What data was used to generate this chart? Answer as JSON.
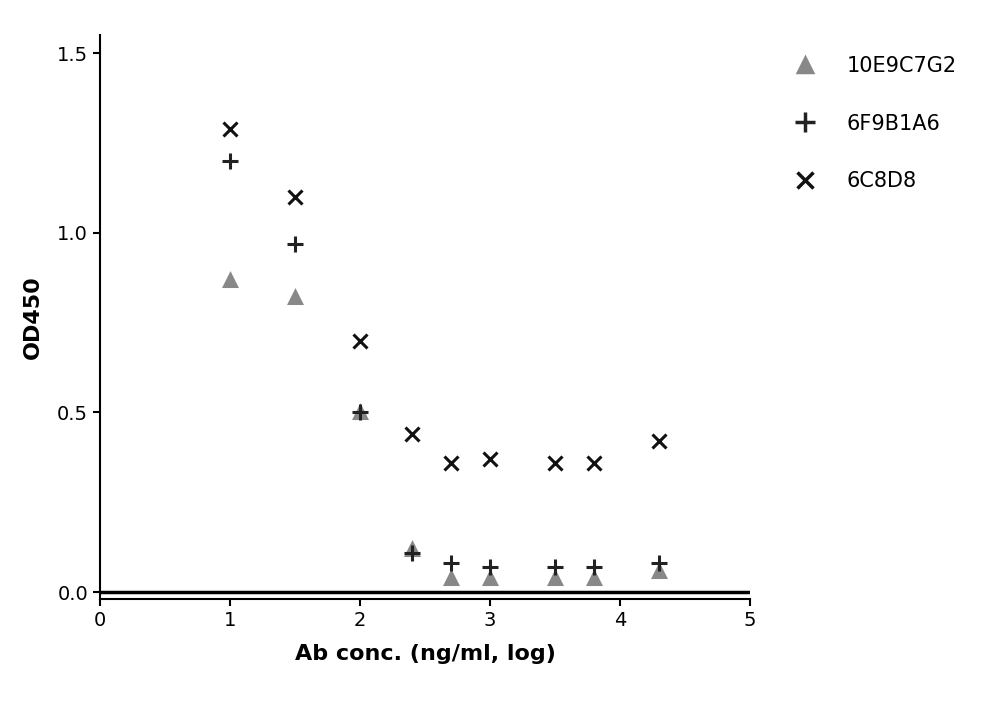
{
  "title": "",
  "xlabel": "Ab conc. (ng/ml, log)",
  "ylabel": "OD450",
  "xlim": [
    0,
    5
  ],
  "ylim": [
    -0.02,
    1.55
  ],
  "xticks": [
    0,
    1,
    2,
    3,
    4,
    5
  ],
  "yticks": [
    0.0,
    0.5,
    1.0,
    1.5
  ],
  "background_color": "#ffffff",
  "series": [
    {
      "name": "10E9C7G2",
      "color": "#888888",
      "marker": "^",
      "markersize": 8,
      "x": [
        1.0,
        1.5,
        2.0,
        2.4,
        2.7,
        3.0,
        3.5,
        3.8,
        4.3
      ],
      "y": [
        0.87,
        0.82,
        0.5,
        0.12,
        0.04,
        0.04,
        0.04,
        0.04,
        0.06
      ]
    },
    {
      "name": "6F9B1A6",
      "color": "#222222",
      "marker": "+",
      "markersize": 11,
      "x": [
        1.0,
        1.5,
        2.0,
        2.4,
        2.7,
        3.0,
        3.5,
        3.8,
        4.3
      ],
      "y": [
        1.2,
        0.97,
        0.5,
        0.11,
        0.08,
        0.07,
        0.07,
        0.07,
        0.08
      ]
    },
    {
      "name": "6C8D8",
      "color": "#111111",
      "marker": "x",
      "markersize": 10,
      "x": [
        1.0,
        1.5,
        2.0,
        2.4,
        2.7,
        3.0,
        3.5,
        3.8,
        4.3
      ],
      "y": [
        1.29,
        1.1,
        0.7,
        0.44,
        0.36,
        0.37,
        0.36,
        0.36,
        0.42
      ]
    }
  ],
  "legend_labels": [
    "10E9C7G2",
    "6F9B1A6",
    "6C8D8"
  ],
  "legend_markers": [
    "^",
    "+",
    "x"
  ],
  "legend_colors": [
    "#888888",
    "#222222",
    "#111111"
  ],
  "legend_marker_sizes": [
    10,
    14,
    12
  ]
}
